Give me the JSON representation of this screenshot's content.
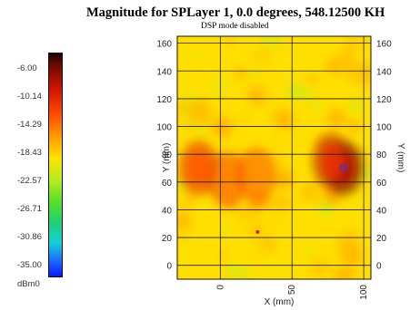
{
  "chart_data": {
    "type": "heatmap",
    "title": "Magnitude for SPLayer 1, 0.0 degrees, 548.12500 KH",
    "subtitle": "DSP mode disabled",
    "xlabel": "X (mm)",
    "ylabel": "Y (mm)",
    "ylabel_right": "Y (mm)",
    "x_ticks": [
      "0",
      "50",
      "100"
    ],
    "y_ticks": [
      "0",
      "20",
      "40",
      "60",
      "80",
      "100",
      "120",
      "140",
      "160"
    ],
    "xlim": [
      -30,
      105
    ],
    "ylim": [
      -10,
      165
    ],
    "colorbar": {
      "ticks": [
        "-6.00",
        "-10.14",
        "-14.29",
        "-18.43",
        "-22.57",
        "-26.71",
        "-30.86",
        "-35.00"
      ],
      "unit": "dBm0",
      "range": [
        -35.0,
        -6.0
      ]
    },
    "hotspots": [
      {
        "x": 86,
        "y": 70,
        "value": -10.1
      },
      {
        "x": 78,
        "y": 75,
        "value": -12.5
      },
      {
        "x": -15,
        "y": 70,
        "value": -14.5
      },
      {
        "x": 5,
        "y": 62,
        "value": -16.0
      },
      {
        "x": 25,
        "y": 65,
        "value": -16.5
      }
    ],
    "background_value": -19.5,
    "markers": [
      {
        "x": 86,
        "y": 70,
        "shape": "ring",
        "color": "#1a3cff"
      },
      {
        "x": 26,
        "y": 24,
        "shape": "dot",
        "color": "#d01a1a"
      }
    ]
  }
}
